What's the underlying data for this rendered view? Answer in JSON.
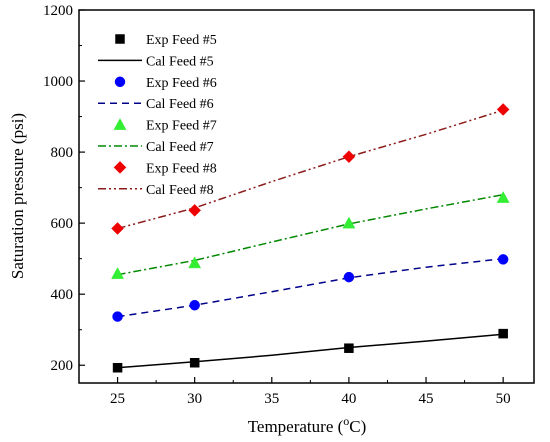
{
  "chart_data": {
    "type": "line",
    "title": "",
    "xlabel": "Temperature (",
    "xlabel_sup": "o",
    "xlabel_unit": "C)",
    "ylabel": "Saturation pressure (psi)",
    "xlim": [
      22.5,
      52
    ],
    "ylim": [
      150,
      1200
    ],
    "xticks": [
      25,
      30,
      35,
      40,
      45,
      50
    ],
    "yticks": [
      200,
      400,
      600,
      800,
      1000,
      1200
    ],
    "grid": false,
    "legend_placement": "top-left",
    "series": [
      {
        "name": "Exp Feed #5",
        "kind": "markers",
        "marker": "square",
        "color": "#000000",
        "x": [
          25,
          30,
          40,
          50
        ],
        "y": [
          193,
          207,
          248,
          289
        ]
      },
      {
        "name": "Cal Feed #5",
        "kind": "line",
        "dash": "solid",
        "color": "#000000",
        "x": [
          25,
          30,
          35,
          40,
          45,
          50
        ],
        "y": [
          193,
          210,
          228,
          250,
          268,
          287
        ]
      },
      {
        "name": "Exp Feed #6",
        "kind": "markers",
        "marker": "circle",
        "color": "#0000ff",
        "x": [
          25,
          30,
          40,
          50
        ],
        "y": [
          337,
          369,
          448,
          498
        ]
      },
      {
        "name": "Cal Feed #6",
        "kind": "line",
        "dash": "dash",
        "color": "#00008b",
        "x": [
          25,
          30,
          35,
          40,
          45,
          50
        ],
        "y": [
          337,
          369,
          407,
          446,
          476,
          500
        ]
      },
      {
        "name": "Exp Feed #7",
        "kind": "markers",
        "marker": "triangle",
        "color": "#33ee33",
        "x": [
          25,
          30,
          40,
          50
        ],
        "y": [
          458,
          488,
          600,
          672
        ]
      },
      {
        "name": "Cal Feed #7",
        "kind": "line",
        "dash": "dashdot",
        "color": "#008800",
        "x": [
          25,
          30,
          35,
          40,
          45,
          50
        ],
        "y": [
          455,
          495,
          547,
          598,
          640,
          680
        ]
      },
      {
        "name": "Exp Feed #8",
        "kind": "markers",
        "marker": "diamond",
        "color": "#ee0000",
        "x": [
          25,
          30,
          40,
          50
        ],
        "y": [
          585,
          636,
          787,
          920
        ]
      },
      {
        "name": "Cal Feed #8",
        "kind": "line",
        "dash": "dashdotdot",
        "color": "#8b1a1a",
        "x": [
          25,
          30,
          35,
          40,
          45,
          50
        ],
        "y": [
          585,
          643,
          717,
          787,
          850,
          918
        ]
      }
    ]
  }
}
